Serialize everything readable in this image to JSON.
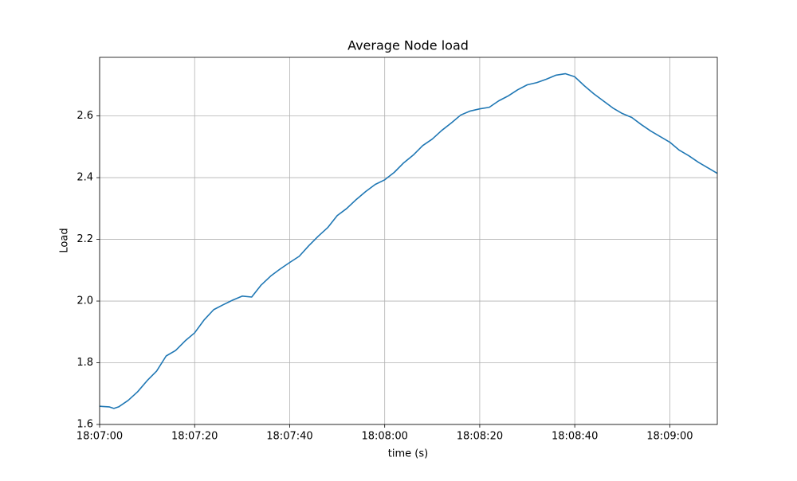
{
  "chart_data": {
    "type": "line",
    "title": "Average Node load",
    "xlabel": "time (s)",
    "ylabel": "Load",
    "x": [
      "18:07:00",
      "18:07:02",
      "18:07:03",
      "18:07:04",
      "18:07:06",
      "18:07:08",
      "18:07:10",
      "18:07:12",
      "18:07:14",
      "18:07:16",
      "18:07:18",
      "18:07:20",
      "18:07:22",
      "18:07:24",
      "18:07:26",
      "18:07:28",
      "18:07:30",
      "18:07:32",
      "18:07:34",
      "18:07:36",
      "18:07:38",
      "18:07:40",
      "18:07:42",
      "18:07:44",
      "18:07:46",
      "18:07:48",
      "18:07:50",
      "18:07:52",
      "18:07:54",
      "18:07:56",
      "18:07:58",
      "18:08:00",
      "18:08:02",
      "18:08:04",
      "18:08:06",
      "18:08:08",
      "18:08:10",
      "18:08:12",
      "18:08:14",
      "18:08:16",
      "18:08:18",
      "18:08:20",
      "18:08:22",
      "18:08:24",
      "18:08:26",
      "18:08:28",
      "18:08:30",
      "18:08:32",
      "18:08:34",
      "18:08:36",
      "18:08:38",
      "18:08:40",
      "18:08:42",
      "18:08:44",
      "18:08:46",
      "18:08:48",
      "18:08:50",
      "18:08:52",
      "18:08:54",
      "18:08:56",
      "18:08:58",
      "18:09:00",
      "18:09:02",
      "18:09:04",
      "18:09:06",
      "18:09:08",
      "18:09:10"
    ],
    "values": [
      1.659,
      1.657,
      1.652,
      1.657,
      1.678,
      1.706,
      1.742,
      1.773,
      1.822,
      1.84,
      1.871,
      1.897,
      1.939,
      1.972,
      1.988,
      2.003,
      2.016,
      2.013,
      2.052,
      2.081,
      2.104,
      2.125,
      2.145,
      2.179,
      2.21,
      2.238,
      2.277,
      2.3,
      2.329,
      2.355,
      2.378,
      2.393,
      2.417,
      2.448,
      2.473,
      2.504,
      2.525,
      2.553,
      2.577,
      2.603,
      2.616,
      2.623,
      2.628,
      2.649,
      2.665,
      2.685,
      2.701,
      2.708,
      2.719,
      2.732,
      2.737,
      2.727,
      2.698,
      2.672,
      2.649,
      2.626,
      2.608,
      2.595,
      2.572,
      2.551,
      2.533,
      2.515,
      2.489,
      2.471,
      2.45,
      2.432,
      2.414
    ],
    "color": "#1f77b4",
    "xlim": [
      "18:07:00",
      "18:09:10"
    ],
    "xticks": [
      "18:07:00",
      "18:07:20",
      "18:07:40",
      "18:08:00",
      "18:08:20",
      "18:08:40",
      "18:09:00"
    ],
    "ylim": [
      1.6,
      2.79
    ],
    "yticks": [
      1.6,
      1.8,
      {
        "value": 2,
        "label": "2.0"
      },
      2.2,
      2.4,
      2.6
    ],
    "grid": true
  }
}
